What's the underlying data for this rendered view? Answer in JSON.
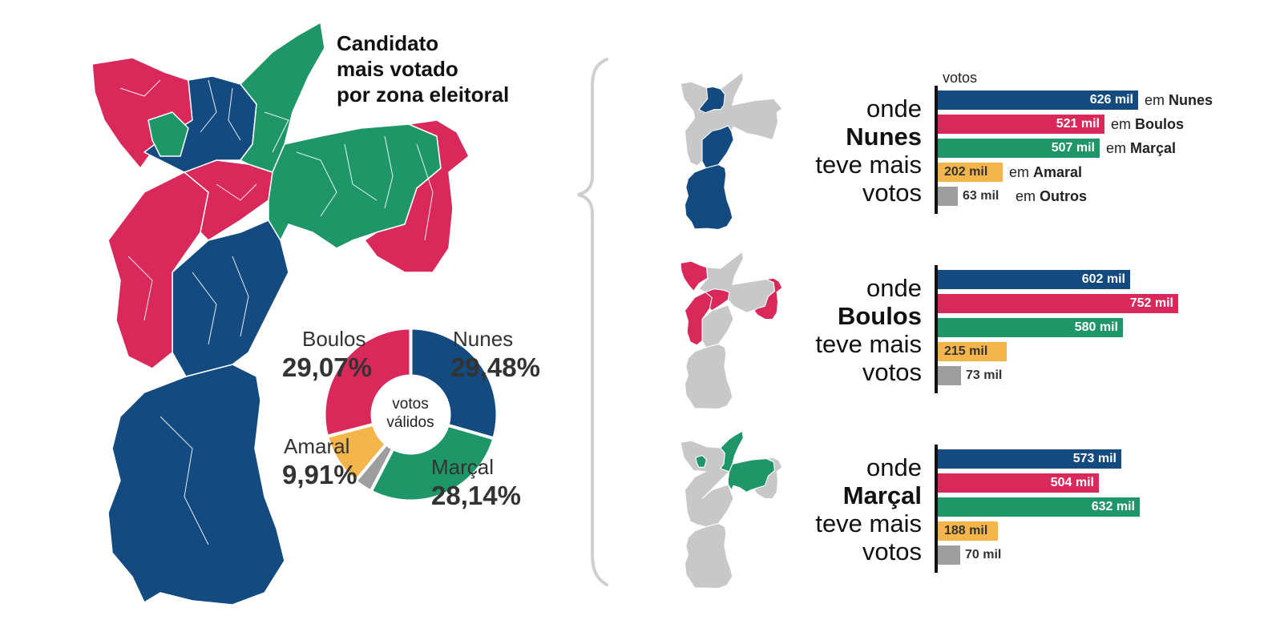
{
  "title": {
    "lines": [
      "Candidato",
      "mais votado",
      "por zona eleitoral"
    ]
  },
  "colors": {
    "nunes": "#134a80",
    "boulos": "#d9285a",
    "marcal": "#1e9668",
    "amaral": "#f4b54a",
    "outros": "#9e9e9e",
    "inactive": "#c8c8c8",
    "brace": "#cfcfcf"
  },
  "donut": {
    "center": [
      "votos",
      "válidos"
    ],
    "slices": [
      {
        "name": "Nunes",
        "value_label": "29,48%",
        "value": 29.48,
        "color": "#134a80"
      },
      {
        "name": "Marçal",
        "value_label": "28,14%",
        "value": 28.14,
        "color": "#1e9668"
      },
      {
        "name": "",
        "value_label": "",
        "value": 3.4,
        "color": "#9e9e9e"
      },
      {
        "name": "Amaral",
        "value_label": "9,91%",
        "value": 9.91,
        "color": "#f4b54a"
      },
      {
        "name": "Boulos",
        "value_label": "29,07%",
        "value": 29.07,
        "color": "#d9285a"
      }
    ]
  },
  "map_legend_icons": [
    "nunes-map-icon",
    "boulos-map-icon",
    "marcal-map-icon"
  ],
  "chart_data": [
    {
      "type": "bar",
      "title": "onde Nunes teve mais votos",
      "unit_label": "votos",
      "categories": [
        "Nunes",
        "Boulos",
        "Marçal",
        "Amaral",
        "Outros"
      ],
      "values": [
        626,
        521,
        507,
        202,
        63
      ],
      "value_labels": [
        "626 mil",
        "521 mil",
        "507 mil",
        "202 mil",
        "63 mil"
      ],
      "category_labels": [
        [
          "em",
          "Nunes"
        ],
        [
          "em",
          "Boulos"
        ],
        [
          "em",
          "Marçal"
        ],
        [
          "em",
          "Amaral"
        ],
        [
          "em",
          "Outros"
        ]
      ]
    },
    {
      "type": "bar",
      "title": "onde Boulos teve mais votos",
      "categories": [
        "Nunes",
        "Boulos",
        "Marçal",
        "Amaral",
        "Outros"
      ],
      "values": [
        602,
        752,
        580,
        215,
        73
      ],
      "value_labels": [
        "602 mil",
        "752 mil",
        "580 mil",
        "215 mil",
        "73 mil"
      ]
    },
    {
      "type": "bar",
      "title": "onde Marçal teve mais votos",
      "categories": [
        "Nunes",
        "Boulos",
        "Marçal",
        "Amaral",
        "Outros"
      ],
      "values": [
        573,
        504,
        632,
        188,
        70
      ],
      "value_labels": [
        "573 mil",
        "504 mil",
        "632 mil",
        "188 mil",
        "70 mil"
      ]
    }
  ],
  "panels": [
    {
      "line1": "onde",
      "name": "Nunes",
      "line3": "teve mais",
      "line4": "votos"
    },
    {
      "line1": "onde",
      "name": "Boulos",
      "line3": "teve mais",
      "line4": "votos"
    },
    {
      "line1": "onde",
      "name": "Marçal",
      "line3": "teve mais",
      "line4": "votos"
    }
  ]
}
